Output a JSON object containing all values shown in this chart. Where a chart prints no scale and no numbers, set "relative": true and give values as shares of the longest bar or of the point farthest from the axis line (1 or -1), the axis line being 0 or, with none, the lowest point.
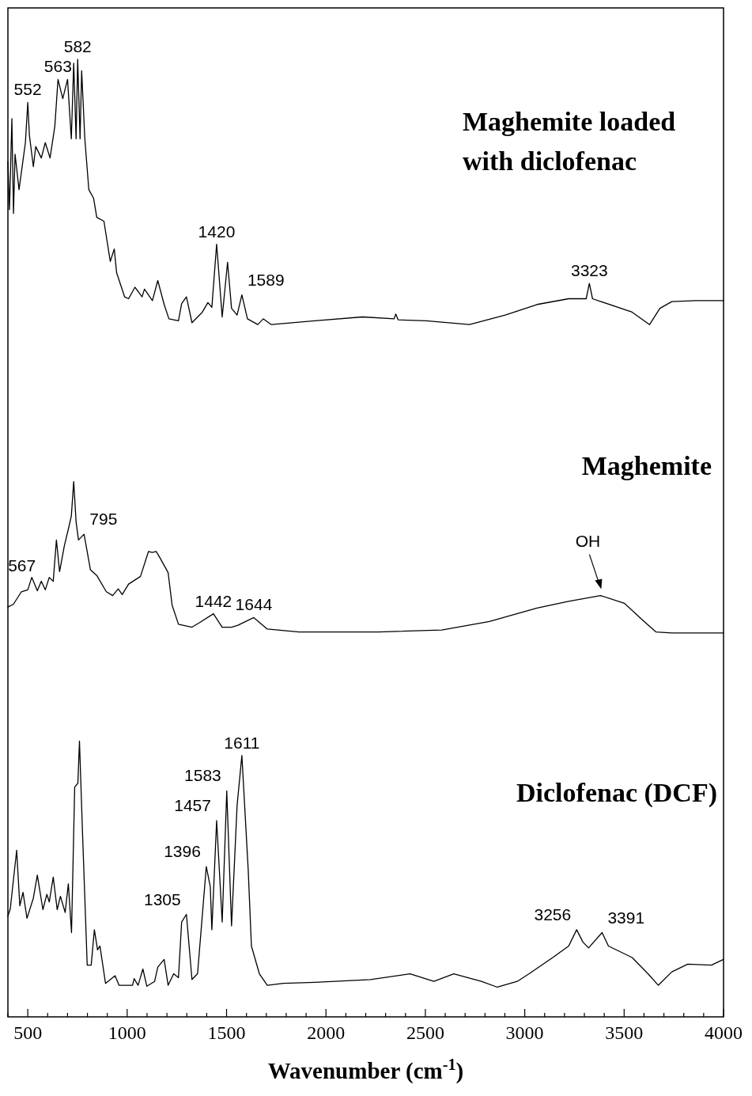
{
  "chart_data": {
    "type": "line",
    "relative": true,
    "xlabel": "Wavenumber (cm$^{-1}$)",
    "xlim": [
      400,
      4000
    ],
    "xticks": [
      {
        "value": 400,
        "label": null
      },
      500,
      {
        "value": 600,
        "label": null
      },
      {
        "value": 700,
        "label": null
      },
      {
        "value": 800,
        "label": null
      },
      {
        "value": 900,
        "label": null
      },
      1000,
      {
        "value": 1100,
        "label": null
      },
      {
        "value": 1200,
        "label": null
      },
      {
        "value": 1300,
        "label": null
      },
      {
        "value": 1400,
        "label": null
      },
      1500,
      {
        "value": 1600,
        "label": null
      },
      {
        "value": 1700,
        "label": null
      },
      {
        "value": 1800,
        "label": null
      },
      {
        "value": 1900,
        "label": null
      },
      2000,
      {
        "value": 2100,
        "label": null
      },
      {
        "value": 2200,
        "label": null
      },
      {
        "value": 2300,
        "label": null
      },
      {
        "value": 2400,
        "label": null
      },
      2500,
      {
        "value": 2600,
        "label": null
      },
      {
        "value": 2700,
        "label": null
      },
      {
        "value": 2800,
        "label": null
      },
      {
        "value": 2900,
        "label": null
      },
      3000,
      {
        "value": 3100,
        "label": null
      },
      {
        "value": 3200,
        "label": null
      },
      {
        "value": 3300,
        "label": null
      },
      {
        "value": 3400,
        "label": null
      },
      3500,
      {
        "value": 3600,
        "label": null
      },
      {
        "value": 3700,
        "label": null
      },
      {
        "value": 3800,
        "label": null
      },
      {
        "value": 3900,
        "label": null
      },
      4000
    ],
    "series": [
      {
        "color": "#000000",
        "x": [
          400,
          408,
          420,
          428,
          436,
          456,
          488,
          500,
          508,
          528,
          540,
          568,
          588,
          612,
          636,
          652,
          676,
          700,
          719,
          731,
          743,
          751,
          763,
          771,
          787,
          807,
          831,
          847,
          883,
          915,
          935,
          947,
          987,
          1007,
          1039,
          1075,
          1087,
          1127,
          1154,
          1186,
          1210,
          1258,
          1274,
          1298,
          1326,
          1378,
          1406,
          1426,
          1450,
          1478,
          1505,
          1525,
          1553,
          1577,
          1605,
          1657,
          1685,
          1725,
          1944,
          2184,
          2343,
          2351,
          2363,
          2503,
          2722,
          2902,
          3062,
          3221,
          3309,
          3325,
          3341,
          3540,
          3628,
          3680,
          3740,
          3860,
          4000
        ],
        "values": [
          0.893,
          0.843,
          0.938,
          0.839,
          0.901,
          0.864,
          0.913,
          0.955,
          0.921,
          0.888,
          0.909,
          0.897,
          0.913,
          0.897,
          0.93,
          0.979,
          0.959,
          0.979,
          0.917,
          0.996,
          0.917,
          1,
          0.917,
          0.988,
          0.917,
          0.864,
          0.855,
          0.835,
          0.831,
          0.789,
          0.802,
          0.777,
          0.752,
          0.75,
          0.762,
          0.752,
          0.76,
          0.748,
          0.769,
          0.744,
          0.729,
          0.727,
          0.745,
          0.752,
          0.725,
          0.736,
          0.746,
          0.741,
          0.807,
          0.731,
          0.788,
          0.74,
          0.733,
          0.754,
          0.729,
          0.723,
          0.729,
          0.723,
          0.727,
          0.731,
          0.729,
          0.734,
          0.728,
          0.727,
          0.723,
          0.733,
          0.744,
          0.75,
          0.75,
          0.766,
          0.75,
          0.736,
          0.723,
          0.74,
          0.747,
          0.748,
          0.748
        ]
      },
      {
        "color": "#000000",
        "x": [
          400,
          428,
          468,
          500,
          520,
          548,
          568,
          588,
          608,
          628,
          644,
          660,
          684,
          707,
          719,
          731,
          743,
          755,
          783,
          791,
          815,
          847,
          895,
          927,
          955,
          975,
          1007,
          1067,
          1107,
          1126,
          1146,
          1166,
          1206,
          1226,
          1258,
          1326,
          1366,
          1434,
          1478,
          1525,
          1557,
          1637,
          1705,
          1864,
          2264,
          2583,
          2822,
          3062,
          3221,
          3381,
          3501,
          3600,
          3660,
          3740,
          4000
        ],
        "values": [
          0.428,
          0.431,
          0.444,
          0.446,
          0.459,
          0.445,
          0.455,
          0.446,
          0.459,
          0.455,
          0.498,
          0.465,
          0.492,
          0.512,
          0.523,
          0.559,
          0.517,
          0.498,
          0.504,
          0.495,
          0.467,
          0.461,
          0.444,
          0.44,
          0.447,
          0.441,
          0.452,
          0.46,
          0.486,
          0.485,
          0.486,
          0.479,
          0.464,
          0.43,
          0.41,
          0.407,
          0.412,
          0.421,
          0.407,
          0.407,
          0.409,
          0.417,
          0.405,
          0.402,
          0.402,
          0.404,
          0.413,
          0.427,
          0.434,
          0.44,
          0.432,
          0.413,
          0.402,
          0.401,
          0.401
        ]
      },
      {
        "color": "#000000",
        "x": [
          400,
          412,
          444,
          460,
          476,
          496,
          528,
          548,
          576,
          596,
          608,
          628,
          648,
          664,
          688,
          704,
          720,
          736,
          752,
          760,
          775,
          799,
          819,
          835,
          851,
          863,
          891,
          939,
          959,
          1027,
          1035,
          1055,
          1079,
          1099,
          1138,
          1154,
          1186,
          1206,
          1234,
          1258,
          1274,
          1298,
          1326,
          1354,
          1398,
          1418,
          1426,
          1450,
          1478,
          1501,
          1525,
          1553,
          1577,
          1609,
          1625,
          1665,
          1705,
          1785,
          1944,
          2224,
          2423,
          2543,
          2643,
          2782,
          2862,
          2962,
          3022,
          3141,
          3221,
          3261,
          3293,
          3321,
          3389,
          3421,
          3540,
          3620,
          3672,
          3740,
          3820,
          3939,
          4000
        ],
        "values": [
          0.105,
          0.113,
          0.174,
          0.116,
          0.13,
          0.103,
          0.124,
          0.148,
          0.112,
          0.128,
          0.12,
          0.146,
          0.112,
          0.126,
          0.109,
          0.139,
          0.088,
          0.24,
          0.244,
          0.288,
          0.194,
          0.054,
          0.054,
          0.091,
          0.07,
          0.074,
          0.035,
          0.043,
          0.033,
          0.033,
          0.04,
          0.033,
          0.05,
          0.032,
          0.037,
          0.052,
          0.06,
          0.033,
          0.045,
          0.041,
          0.099,
          0.107,
          0.039,
          0.045,
          0.157,
          0.136,
          0.091,
          0.205,
          0.099,
          0.236,
          0.095,
          0.221,
          0.273,
          0.153,
          0.074,
          0.045,
          0.033,
          0.035,
          0.036,
          0.039,
          0.045,
          0.037,
          0.045,
          0.037,
          0.031,
          0.037,
          0.045,
          0.062,
          0.074,
          0.091,
          0.078,
          0.072,
          0.088,
          0.074,
          0.062,
          0.045,
          0.033,
          0.047,
          0.055,
          0.054,
          0.06
        ]
      }
    ],
    "annotations": [
      "Maghemite loaded with diclofenac",
      "Maghemite",
      "Diclofenac (DCF)",
      {
        "text": "552",
        "x": 500,
        "y": 0.955
      },
      {
        "text": "563",
        "x": 652,
        "y": 0.979
      },
      {
        "text": "582",
        "x": 751,
        "y": 1
      },
      {
        "text": "1420",
        "x": 1450,
        "y": 0.807
      },
      {
        "text": "1589",
        "x": 1577,
        "y": 0.754
      },
      {
        "text": "3323",
        "x": 3325,
        "y": 0.766
      },
      {
        "text": "567",
        "x": 568,
        "y": 0.455
      },
      {
        "text": "795",
        "x": 783,
        "y": 0.504
      },
      {
        "text": "1442",
        "x": 1434,
        "y": 0.421
      },
      {
        "text": "1644",
        "x": 1637,
        "y": 0.417
      },
      {
        "text": "OH",
        "x": 3381,
        "y": 0.44
      },
      {
        "text": "1611",
        "x": 1577,
        "y": 0.273
      },
      {
        "text": "1583",
        "x": 1501,
        "y": 0.236
      },
      {
        "text": "1457",
        "x": 1450,
        "y": 0.205
      },
      {
        "text": "1396",
        "x": 1398,
        "y": 0.157
      },
      {
        "text": "1305",
        "x": 1298,
        "y": 0.107
      },
      {
        "text": "3256",
        "x": 3261,
        "y": 0.091
      },
      {
        "text": "3391",
        "x": 3389,
        "y": 0.088
      }
    ]
  }
}
